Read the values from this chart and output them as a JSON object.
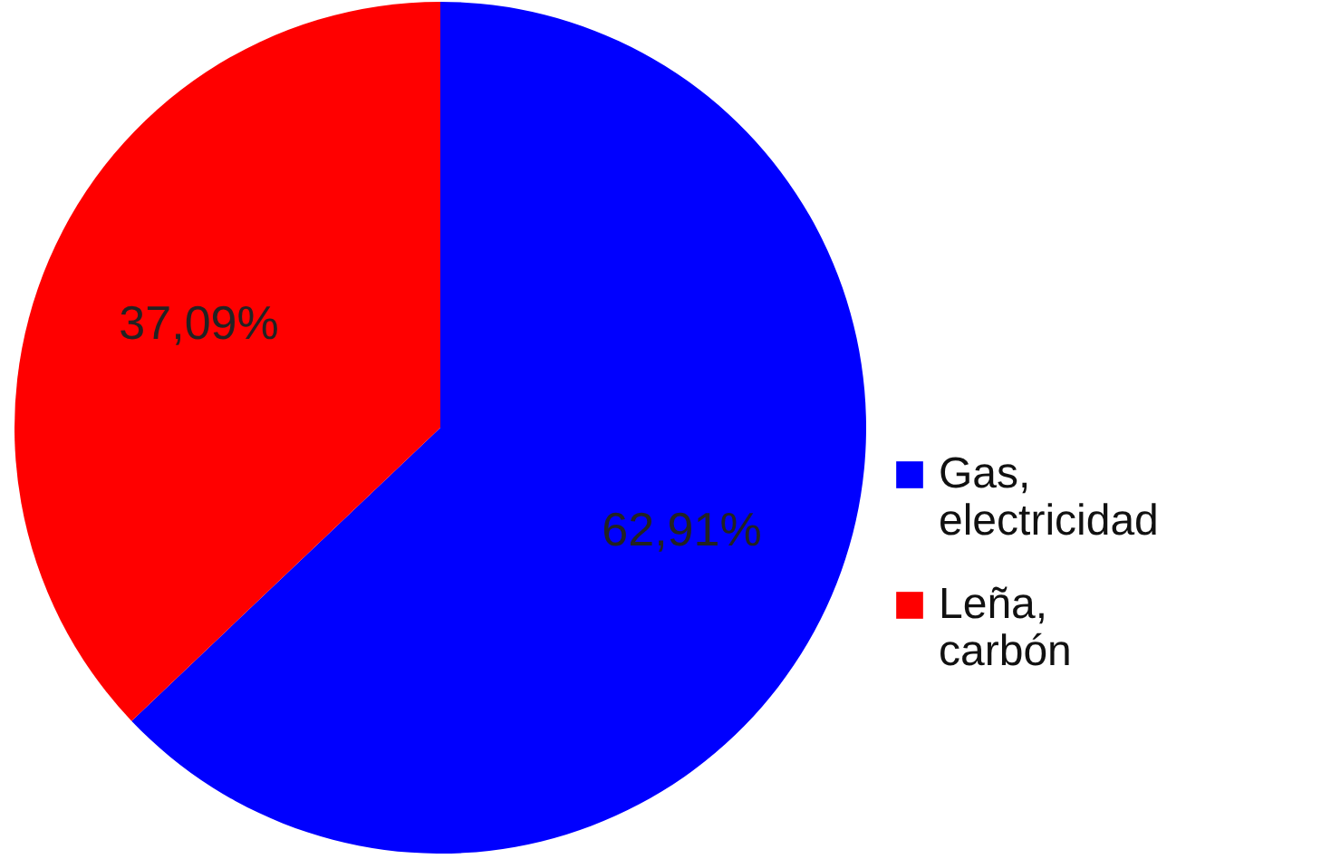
{
  "chart_data": {
    "type": "pie",
    "categories": [
      "Gas, electricidad",
      "Leña, carbón"
    ],
    "values": [
      62.91,
      37.09
    ],
    "colors": [
      "#0000ff",
      "#ff0000"
    ],
    "value_labels": [
      "62,91%",
      "37,09%"
    ],
    "legend": "right"
  }
}
